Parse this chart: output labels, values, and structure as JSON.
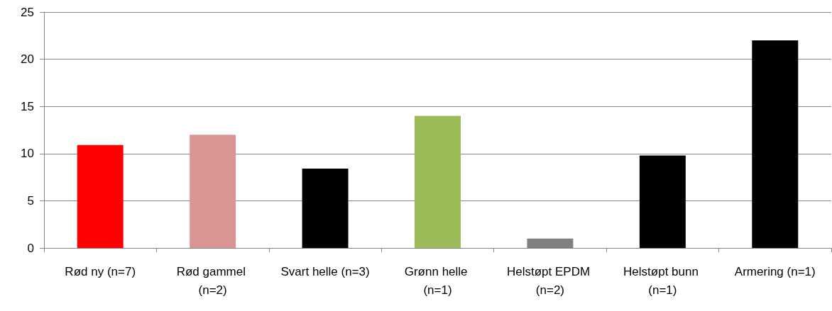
{
  "chart_data": {
    "type": "bar",
    "categories": [
      "Rød ny (n=7)",
      "Rød gammel (n=2)",
      "Svart helle (n=3)",
      "Grønn helle (n=1)",
      "Helstøpt EPDM (n=2)",
      "Helstøpt bunn (n=1)",
      "Armering (n=1)"
    ],
    "values": [
      10.9,
      12.0,
      8.4,
      14.0,
      1.0,
      9.8,
      22.0
    ],
    "colors": [
      "#ff0000",
      "#d99594",
      "#000000",
      "#9bbb59",
      "#808080",
      "#000000",
      "#000000"
    ],
    "ylim": [
      0,
      25
    ],
    "yticks": [
      0,
      5,
      10,
      15,
      20,
      25
    ],
    "grid": "y"
  }
}
